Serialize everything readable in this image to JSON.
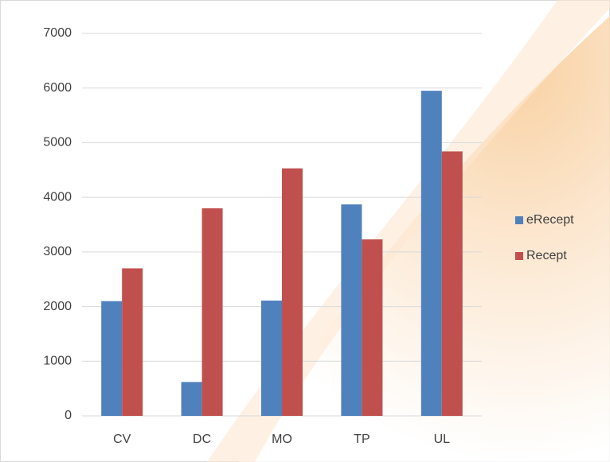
{
  "chart_data": {
    "type": "bar",
    "categories": [
      "CV",
      "DC",
      "MO",
      "TP",
      "UL"
    ],
    "series": [
      {
        "name": "eRecept",
        "color": "#4f81bd",
        "values": [
          2100,
          620,
          2110,
          3870,
          5950
        ]
      },
      {
        "name": "Recept",
        "color": "#c0504d",
        "values": [
          2700,
          3800,
          4530,
          3230,
          4840
        ]
      }
    ],
    "ylim": [
      0,
      7000
    ],
    "yticks": [
      0,
      1000,
      2000,
      3000,
      4000,
      5000,
      6000,
      7000
    ],
    "grid": true,
    "legend": "right"
  }
}
